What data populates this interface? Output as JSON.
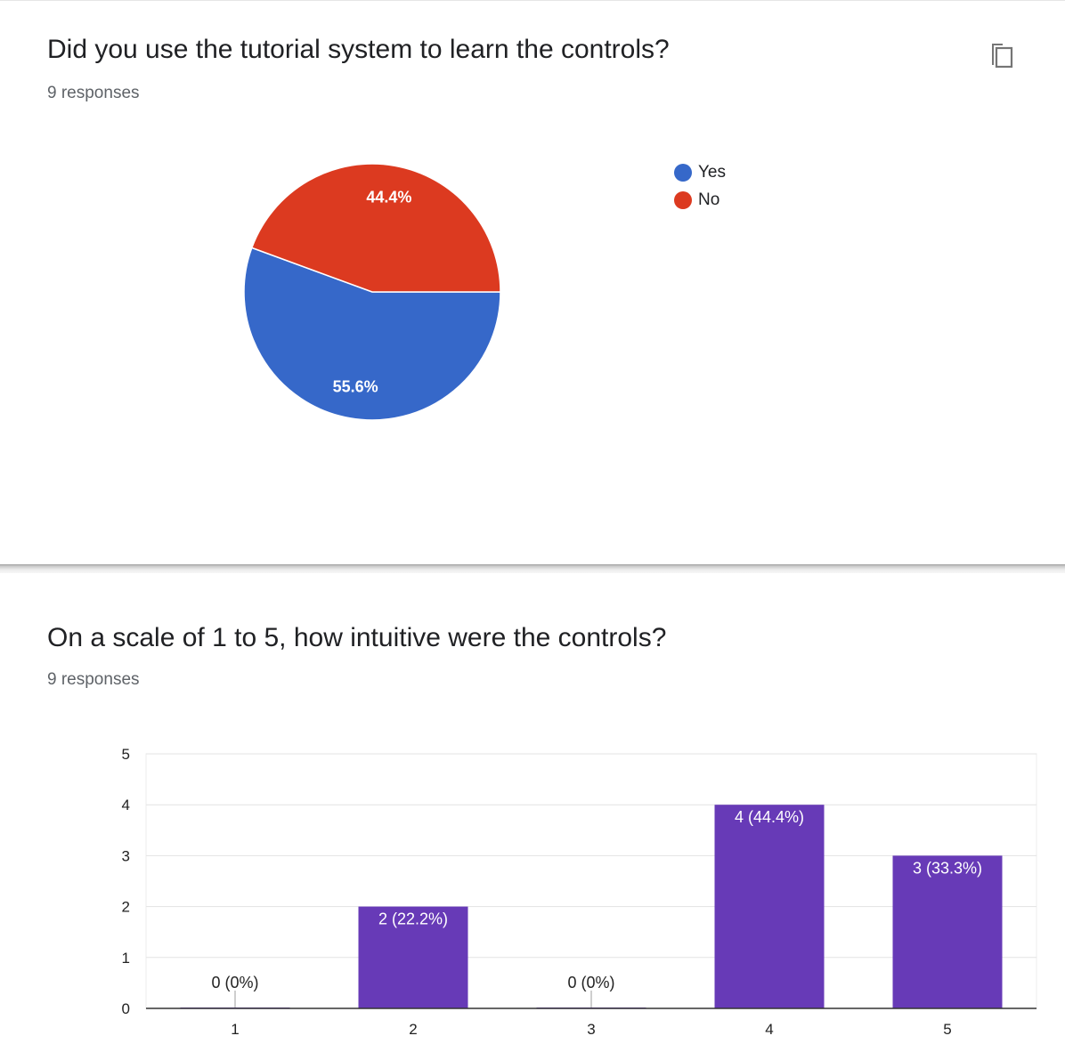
{
  "questions": [
    {
      "title": "Did you use the tutorial system to learn the controls?",
      "responses": "9 responses",
      "copy_icon": "copy-icon"
    },
    {
      "title": "On a scale of 1 to 5, how intuitive were the controls?",
      "responses": "9 responses"
    }
  ],
  "chart_data": [
    {
      "type": "pie",
      "slices": [
        {
          "label": "Yes",
          "value": 55.6,
          "display": "55.6%",
          "color": "#3668c9"
        },
        {
          "label": "No",
          "value": 44.4,
          "display": "44.4%",
          "color": "#dc3a20"
        }
      ],
      "legend_position": "right"
    },
    {
      "type": "bar",
      "categories": [
        "1",
        "2",
        "3",
        "4",
        "5"
      ],
      "values": [
        0,
        2,
        0,
        4,
        3
      ],
      "data_labels": [
        "0 (0%)",
        "2 (22.2%)",
        "0 (0%)",
        "4 (44.4%)",
        "3 (33.3%)"
      ],
      "ylim": [
        0,
        5
      ],
      "yticks": [
        0,
        1,
        2,
        3,
        4,
        5
      ],
      "color": "#673ab7",
      "grid": true,
      "xlabel": "",
      "ylabel": ""
    }
  ]
}
